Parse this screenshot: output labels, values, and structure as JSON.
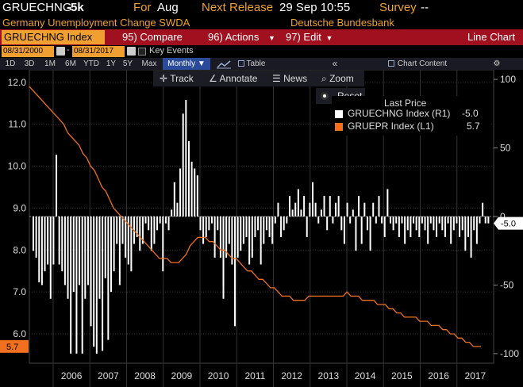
{
  "header": {
    "ticker": "GRUECHNG",
    "value": "-5k",
    "for_label": "For",
    "for_value": "Aug",
    "next_release_label": "Next Release",
    "next_release_value": "29 Sep 10:55",
    "survey_label": "Survey",
    "survey_value": "--",
    "description": "Germany Unemployment Change SWDA",
    "source": "Deutsche Bundesbank"
  },
  "command_bar": {
    "security": "GRUECHNG Index",
    "compare_num": "95)",
    "compare_label": "Compare",
    "actions_num": "96)",
    "actions_label": "Actions",
    "edit_num": "97)",
    "edit_label": "Edit",
    "chart_type": "Line Chart"
  },
  "range": {
    "start": "08/31/2000",
    "end": "08/31/2017",
    "key_events": "Key Events"
  },
  "toolbar": {
    "periods": [
      "1D",
      "3D",
      "1M",
      "6M",
      "YTD",
      "1Y",
      "5Y",
      "Max"
    ],
    "frequency": "Monthly ▼",
    "table_label": "Table",
    "collapse": "«",
    "chart_content": "Chart Content"
  },
  "chart_tools": {
    "track": "Track",
    "annotate": "Annotate",
    "news": "News",
    "zoom": "Zoom",
    "reset": "Reset"
  },
  "legend": {
    "title": "Last Price",
    "items": [
      {
        "name": "GRUECHNG Index  (R1)",
        "value": "-5.0",
        "color": "#ffffff"
      },
      {
        "name": "GRUEPR Index  (L1)",
        "value": "5.7",
        "color": "#f07020"
      }
    ]
  },
  "chart_data": {
    "type": "bar",
    "x_labels": [
      "2006",
      "2007",
      "2008",
      "2009",
      "2010",
      "2011",
      "2012",
      "2013",
      "2014",
      "2015",
      "2016",
      "2017"
    ],
    "left_axis": {
      "ticks": [
        "12.0",
        "11.0",
        "10.0",
        "9.0",
        "8.0",
        "7.0",
        "6.0"
      ],
      "ylim": [
        5.3,
        12.3
      ],
      "last_label": "5.7"
    },
    "right_axis": {
      "ticks": [
        "100",
        "50",
        "0",
        "-50",
        "-100"
      ],
      "ylim": [
        -107,
        107
      ],
      "last_label": "-5.0"
    },
    "series": [
      {
        "name": "GRUECHNG Index",
        "type": "bar",
        "axis": "right",
        "color": "#ffffff",
        "values": [
          -25,
          -30,
          -48,
          -50,
          -40,
          -35,
          -60,
          -35,
          45,
          -35,
          -40,
          -50,
          -60,
          -100,
          -55,
          -100,
          -50,
          -100,
          -60,
          -50,
          -80,
          -95,
          -100,
          -60,
          -98,
          -45,
          -90,
          -55,
          -40,
          -20,
          -50,
          -20,
          -30,
          -35,
          -40,
          -20,
          -15,
          -25,
          -20,
          -5,
          -10,
          -25,
          -20,
          -10,
          -5,
          -40,
          -5,
          -10,
          5,
          25,
          10,
          35,
          75,
          85,
          55,
          40,
          35,
          30,
          -10,
          -20,
          -15,
          -10,
          -5,
          -30,
          -10,
          -30,
          -60,
          -30,
          -20,
          -35,
          -80,
          -30,
          -25,
          -20,
          -15,
          -35,
          -30,
          -15,
          -10,
          -35,
          -20,
          -10,
          -15,
          -20,
          -5,
          10,
          -15,
          -10,
          -5,
          15,
          5,
          10,
          20,
          5,
          15,
          -15,
          10,
          25,
          10,
          -5,
          5,
          15,
          -10,
          15,
          -5,
          10,
          15,
          -10,
          -20,
          10,
          -5,
          5,
          -25,
          15,
          -20,
          10,
          -10,
          -25,
          10,
          -5,
          15,
          -5,
          -15,
          20,
          -5,
          -10,
          -5,
          -15,
          -5,
          -20,
          -10,
          -15,
          -5,
          -10,
          -15,
          -5,
          -10,
          -20,
          -5,
          -10,
          -15,
          -5,
          -10,
          -15,
          -5,
          -20,
          -10,
          -5,
          -15,
          -10,
          -25,
          -15,
          -30,
          -10,
          -20,
          -5,
          10,
          -5,
          -5
        ]
      },
      {
        "name": "GRUEPR Index",
        "type": "line",
        "axis": "left",
        "color": "#f07020",
        "values": [
          11.9,
          11.8,
          11.7,
          11.6,
          11.5,
          11.4,
          11.3,
          11.2,
          11.1,
          11.0,
          10.8,
          10.7,
          10.6,
          10.5,
          10.3,
          10.2,
          10.0,
          9.9,
          9.7,
          9.5,
          9.4,
          9.2,
          9.0,
          8.9,
          8.8,
          8.7,
          8.6,
          8.5,
          8.4,
          8.3,
          8.2,
          8.1,
          8.0,
          7.9,
          7.8,
          7.8,
          7.8,
          7.7,
          7.7,
          7.7,
          7.8,
          7.9,
          8.1,
          8.2,
          8.3,
          8.3,
          8.3,
          8.2,
          8.2,
          8.1,
          8.0,
          8.0,
          7.9,
          7.8,
          7.8,
          7.7,
          7.6,
          7.5,
          7.5,
          7.4,
          7.3,
          7.3,
          7.2,
          7.1,
          7.1,
          7.0,
          6.9,
          6.9,
          6.9,
          6.8,
          6.8,
          6.8,
          6.8,
          6.9,
          6.9,
          6.9,
          6.9,
          6.9,
          6.9,
          6.9,
          6.9,
          6.9,
          6.9,
          7.0,
          6.9,
          6.9,
          6.9,
          6.8,
          6.8,
          6.8,
          6.8,
          6.7,
          6.7,
          6.7,
          6.6,
          6.6,
          6.5,
          6.5,
          6.4,
          6.4,
          6.4,
          6.4,
          6.3,
          6.3,
          6.3,
          6.2,
          6.2,
          6.2,
          6.1,
          6.1,
          6.0,
          6.0,
          5.9,
          5.9,
          5.8,
          5.8,
          5.7,
          5.7,
          5.7
        ]
      }
    ]
  }
}
